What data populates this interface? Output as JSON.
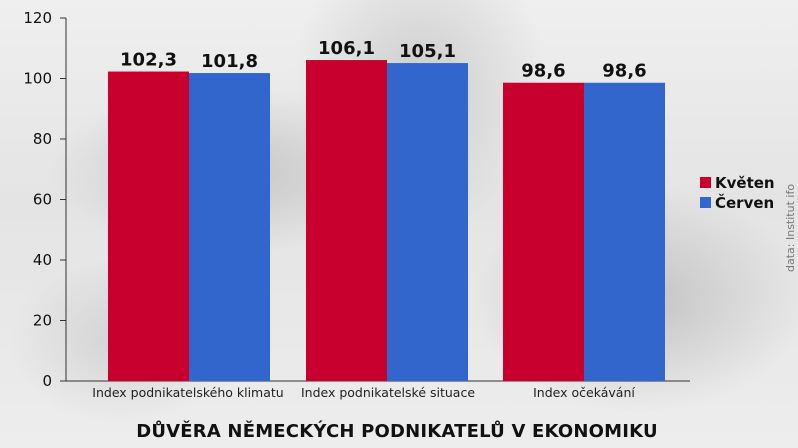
{
  "chart_data": {
    "type": "bar",
    "title": "DŮVĚRA NĚMECKÝCH PODNIKATELŮ V EKONOMIKU",
    "categories": [
      "Index podnikatelského klimatu",
      "Index podnikatelské situace",
      "Index očekávání"
    ],
    "series": [
      {
        "name": "Květen",
        "color": "#c8002d",
        "values": [
          102.3,
          106.1,
          98.6
        ],
        "labels": [
          "102,3",
          "106,1",
          "98,6"
        ]
      },
      {
        "name": "Červen",
        "color": "#3366cc",
        "values": [
          101.8,
          105.1,
          98.6
        ],
        "labels": [
          "101,8",
          "105,1",
          "98,6"
        ]
      }
    ],
    "ylim": [
      0,
      120
    ],
    "yticks": [
      0,
      20,
      40,
      60,
      80,
      100,
      120
    ],
    "xlabel": "",
    "ylabel": "",
    "grid": false,
    "legend_position": "right",
    "source": "data: Institut ifo"
  }
}
